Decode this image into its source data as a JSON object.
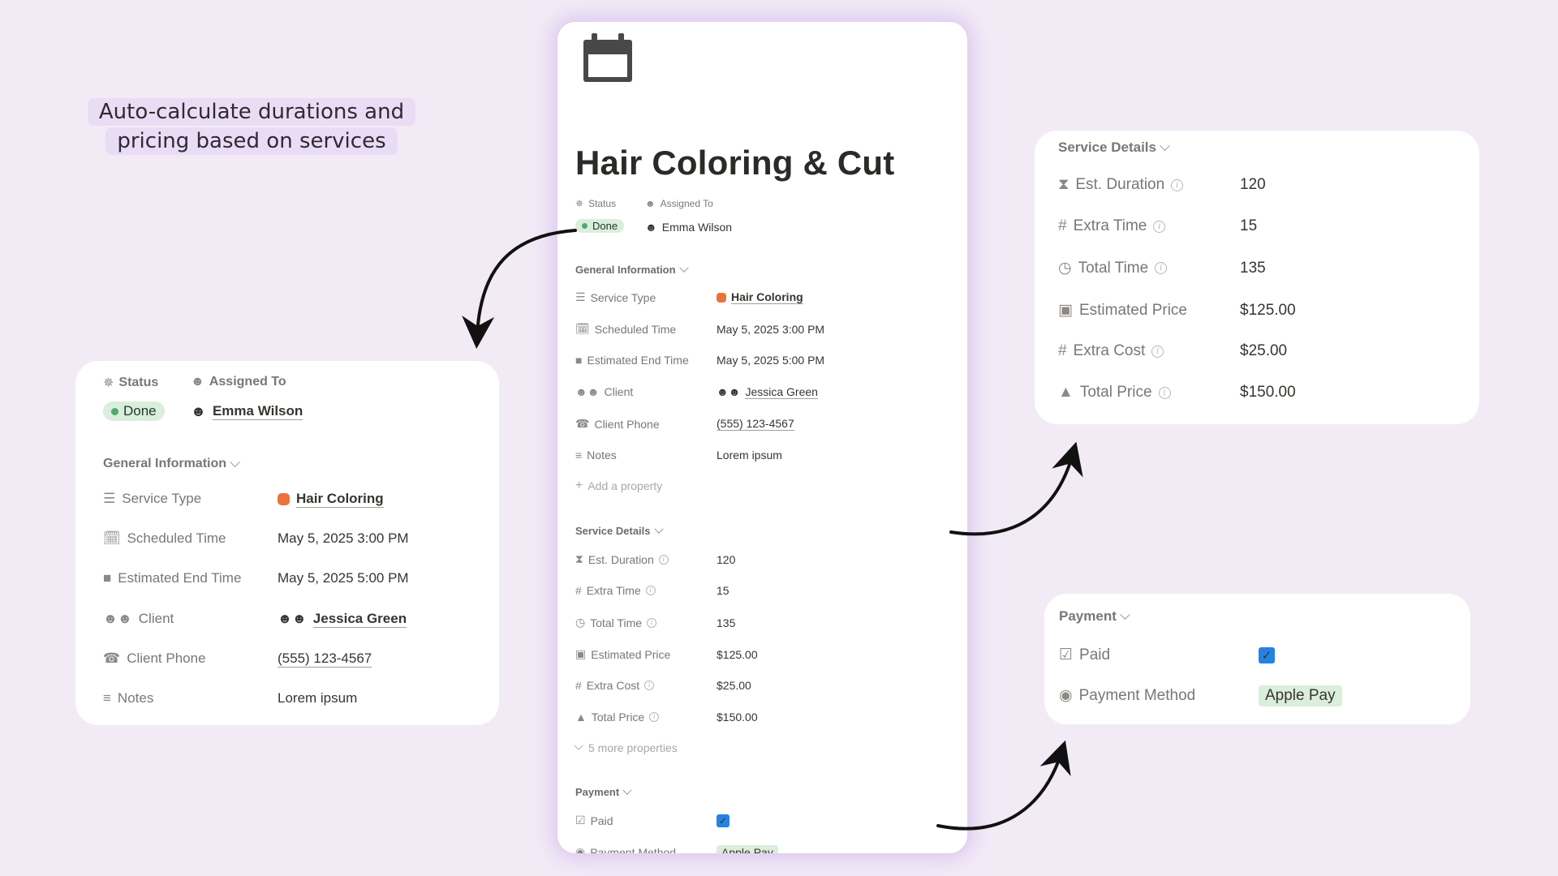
{
  "headline": {
    "line1": "Auto-calculate durations and",
    "line2": "pricing based on services"
  },
  "page": {
    "title": "Hair Coloring & Cut",
    "status_label": "Status",
    "status_value": "Done",
    "assigned_label": "Assigned To",
    "assigned_value": "Emma Wilson",
    "general": {
      "title": "General Information",
      "rows": [
        {
          "label": "Service Type",
          "value": "Hair Coloring"
        },
        {
          "label": "Scheduled Time",
          "value": "May 5, 2025 3:00 PM"
        },
        {
          "label": "Estimated End Time",
          "value": "May 5, 2025 5:00 PM"
        },
        {
          "label": "Client",
          "value": "Jessica Green"
        },
        {
          "label": "Client Phone",
          "value": "(555) 123-4567"
        },
        {
          "label": "Notes",
          "value": "Lorem ipsum"
        }
      ],
      "add_property": "Add a property"
    },
    "service": {
      "title": "Service Details",
      "rows": [
        {
          "label": "Est. Duration",
          "value": "120"
        },
        {
          "label": "Extra Time",
          "value": "15"
        },
        {
          "label": "Total Time",
          "value": "135"
        },
        {
          "label": "Estimated Price",
          "value": "$125.00"
        },
        {
          "label": "Extra Cost",
          "value": "$25.00"
        },
        {
          "label": "Total Price",
          "value": "$150.00"
        }
      ],
      "more": "5 more properties"
    },
    "payment": {
      "title": "Payment",
      "paid_label": "Paid",
      "paid_checked": true,
      "method_label": "Payment Method",
      "method_value": "Apple Pay"
    }
  },
  "colors": {
    "background": "#f2ebf6",
    "accent_blue": "#2383e2",
    "tag_green": "#dbeddb",
    "status_dot": "#4dab6f",
    "headline_highlight": "#eadcf5"
  },
  "icons": [
    "calendar-icon",
    "loading-status-icon",
    "person-circle-icon",
    "list-icon",
    "calendar-small-icon",
    "square-icon",
    "people-icon",
    "phone-icon",
    "text-lines-icon",
    "plus-icon",
    "hourglass-icon",
    "hash-icon",
    "clock-icon",
    "money-icon",
    "cash-register-icon",
    "checkbox-icon",
    "radio-circle-icon",
    "info-icon",
    "hair-salon-emoji-icon",
    "arrow-icon"
  ]
}
